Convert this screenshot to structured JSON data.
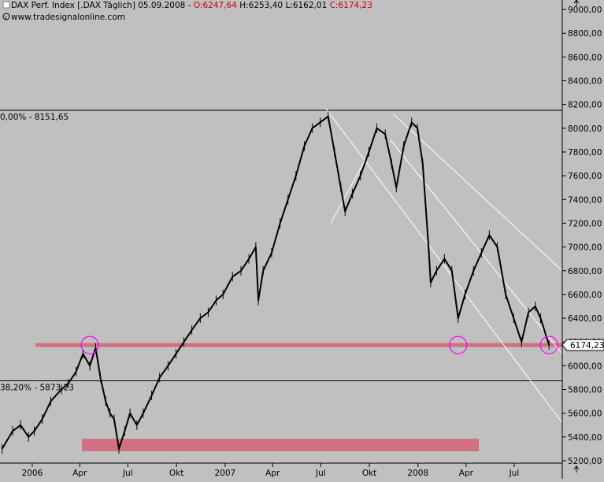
{
  "header": {
    "title": "DAX Perf. Index [.DAX  Täglich] 05.09.2008",
    "open": "O:6247,64",
    "high": "H:6253,40",
    "low": "L:6162,01",
    "close": "C:6174,23",
    "website": "www.tradesignalonline.com"
  },
  "colors": {
    "background": "#c0c0c0",
    "price_line": "#000000",
    "open_value": "#cc0000",
    "close_value": "#cc0000",
    "support_band": "#d07080",
    "highlight_circle": "#ff00ff",
    "channel_lines": "#ffffff"
  },
  "chart_data": {
    "type": "line",
    "title": "DAX Perf. Index [.DAX  Täglich] 05.09.2008",
    "y_axis_side": "right",
    "ylim": [
      5180,
      9080
    ],
    "y_ticks": [
      5200,
      5400,
      5600,
      5800,
      6000,
      6200,
      6400,
      6600,
      6800,
      7000,
      7200,
      7400,
      7600,
      7800,
      8000,
      8200,
      8400,
      8600,
      8800,
      9000
    ],
    "y_tick_labels": [
      "5200,00",
      "5400,00",
      "5600,00",
      "5800,00",
      "6000,00",
      "6200,00",
      "6400,00",
      "6600,00",
      "6800,00",
      "7000,00",
      "7200,00",
      "7400,00",
      "7600,00",
      "7800,00",
      "8000,00",
      "8200,00",
      "8400,00",
      "8600,00",
      "8800,00",
      "9000,00"
    ],
    "x_range": [
      "2005-11-01",
      "2008-09-30"
    ],
    "x_ticks": [
      {
        "date": "2006-01-01",
        "label": "2006"
      },
      {
        "date": "2006-04-01",
        "label": "Apr"
      },
      {
        "date": "2006-07-01",
        "label": "Jul"
      },
      {
        "date": "2006-10-01",
        "label": "Okt"
      },
      {
        "date": "2007-01-01",
        "label": "2007"
      },
      {
        "date": "2007-04-01",
        "label": "Apr"
      },
      {
        "date": "2007-07-01",
        "label": "Jul"
      },
      {
        "date": "2007-10-01",
        "label": "Okt"
      },
      {
        "date": "2008-01-01",
        "label": "2008"
      },
      {
        "date": "2008-04-01",
        "label": "Apr"
      },
      {
        "date": "2008-07-01",
        "label": "Jul"
      }
    ],
    "series": [
      {
        "x": [
          "2005-11-05",
          "2005-11-25",
          "2005-12-10",
          "2005-12-25",
          "2006-01-05",
          "2006-01-20",
          "2006-02-05",
          "2006-02-25",
          "2006-03-10",
          "2006-03-25",
          "2006-04-07",
          "2006-04-20",
          "2006-05-01",
          "2006-05-10",
          "2006-05-20",
          "2006-05-28",
          "2006-06-05",
          "2006-06-14",
          "2006-06-25",
          "2006-07-05",
          "2006-07-18",
          "2006-07-30",
          "2006-08-15",
          "2006-08-30",
          "2006-09-15",
          "2006-09-30",
          "2006-10-15",
          "2006-10-30",
          "2006-11-15",
          "2006-11-30",
          "2006-12-15",
          "2006-12-28",
          "2007-01-15",
          "2007-01-31",
          "2007-02-15",
          "2007-02-28",
          "2007-03-05",
          "2007-03-14",
          "2007-03-30",
          "2007-04-15",
          "2007-04-30",
          "2007-05-15",
          "2007-05-31",
          "2007-06-15",
          "2007-06-30",
          "2007-07-15",
          "2007-07-27",
          "2007-08-08",
          "2007-08-16",
          "2007-08-30",
          "2007-09-14",
          "2007-09-30",
          "2007-10-15",
          "2007-10-31",
          "2007-11-12",
          "2007-11-21",
          "2007-12-05",
          "2007-12-20",
          "2007-12-31",
          "2008-01-10",
          "2008-01-21",
          "2008-01-25",
          "2008-02-05",
          "2008-02-20",
          "2008-03-05",
          "2008-03-17",
          "2008-03-30",
          "2008-04-15",
          "2008-04-30",
          "2008-05-15",
          "2008-05-30",
          "2008-06-15",
          "2008-06-30",
          "2008-07-15",
          "2008-07-28",
          "2008-08-10",
          "2008-08-20",
          "2008-09-05"
        ],
        "y": [
          5300,
          5450,
          5500,
          5400,
          5450,
          5550,
          5700,
          5800,
          5850,
          5950,
          6100,
          6000,
          6150,
          5900,
          5700,
          5600,
          5550,
          5300,
          5450,
          5600,
          5500,
          5600,
          5750,
          5900,
          6000,
          6100,
          6200,
          6300,
          6400,
          6450,
          6550,
          6600,
          6750,
          6800,
          6900,
          7000,
          6550,
          6800,
          6950,
          7200,
          7400,
          7600,
          7850,
          8000,
          8050,
          8100,
          7800,
          7500,
          7300,
          7450,
          7600,
          7800,
          8000,
          7950,
          7700,
          7500,
          7850,
          8050,
          8000,
          7700,
          7000,
          6700,
          6800,
          6900,
          6800,
          6400,
          6600,
          6800,
          6950,
          7100,
          7000,
          6600,
          6400,
          6200,
          6450,
          6500,
          6400,
          6174
        ]
      }
    ],
    "horizontal_lines": [
      {
        "y": 8151.65,
        "label": "0,00% - 8151,65"
      },
      {
        "y": 5873.23,
        "label": "38,20% - 5873,23"
      }
    ],
    "support_level": 6174.23,
    "support_band": [
      5280,
      5385
    ],
    "highlight_dates": [
      "2006-04-20",
      "2008-03-17",
      "2008-09-05"
    ],
    "channel_lines": [
      {
        "from": {
          "x": "2007-07-10",
          "y": 8170
        },
        "to": {
          "x": "2008-09-30",
          "y": 5520
        }
      },
      {
        "from": {
          "x": "2007-07-20",
          "y": 7200
        },
        "to": {
          "x": "2007-09-25",
          "y": 7750
        }
      },
      {
        "from": {
          "x": "2007-11-15",
          "y": 8120
        },
        "to": {
          "x": "2008-09-30",
          "y": 6800
        }
      },
      {
        "from": {
          "x": "2007-11-10",
          "y": 7900
        },
        "to": {
          "x": "2008-09-30",
          "y": 6100
        }
      }
    ],
    "last_value_label": "6174,23"
  }
}
